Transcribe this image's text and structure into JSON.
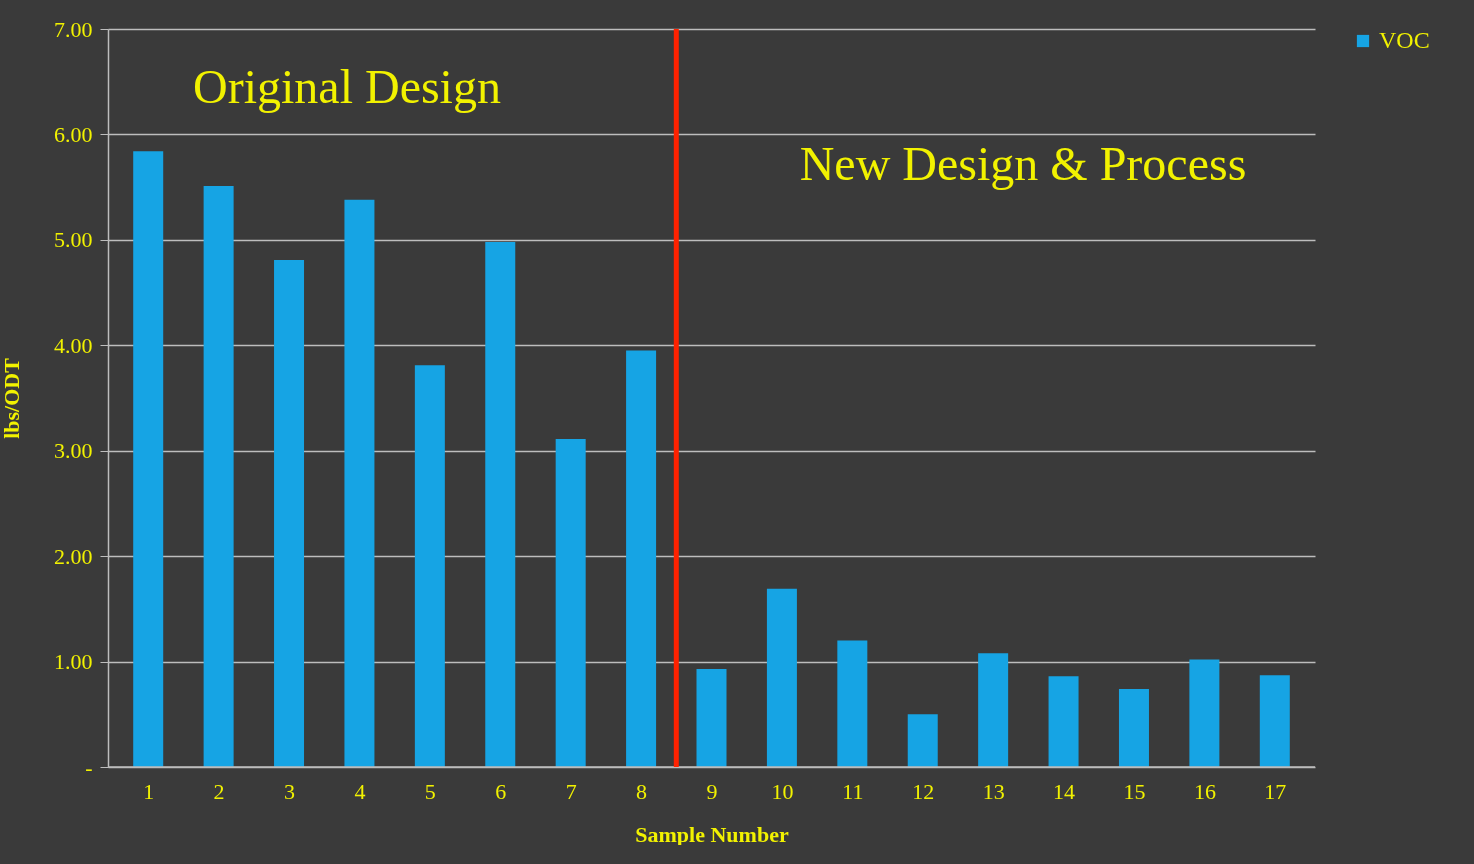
{
  "chart_data": {
    "type": "bar",
    "xlabel": "Sample Number",
    "ylabel": "lbs/ODT",
    "x": [
      1,
      2,
      3,
      4,
      5,
      6,
      7,
      8,
      9,
      10,
      11,
      12,
      13,
      14,
      15,
      16,
      17
    ],
    "xlim": [
      0.5,
      17.5
    ],
    "xticks": [
      1,
      2,
      3,
      4,
      5,
      6,
      7,
      8,
      9,
      10,
      11,
      12,
      13,
      14,
      15,
      16,
      17
    ],
    "series": [
      {
        "name": "VOC",
        "color": "#16a4e4",
        "values": [
          5.84,
          5.51,
          4.81,
          5.38,
          3.81,
          4.98,
          3.11,
          3.95,
          0.93,
          1.69,
          1.2,
          0.5,
          1.08,
          0.86,
          0.74,
          1.02,
          0.87
        ]
      }
    ],
    "ylim": [
      0,
      7
    ],
    "yticks": [
      {
        "value": 0,
        "label": "-"
      },
      {
        "value": 1,
        "label": "1.00"
      },
      {
        "value": 2,
        "label": "2.00"
      },
      {
        "value": 3,
        "label": "3.00"
      },
      {
        "value": 4,
        "label": "4.00"
      },
      {
        "value": 5,
        "label": "5.00"
      },
      {
        "value": 6,
        "label": "6.00"
      },
      {
        "value": 7,
        "label": "7.00"
      }
    ],
    "grid": "y",
    "legend": "right",
    "ref_lines": [
      {
        "axis": "x",
        "value": 8.5,
        "color": "#ff2200"
      }
    ],
    "annotations": [
      "Original Design",
      "New Design & Process"
    ]
  }
}
